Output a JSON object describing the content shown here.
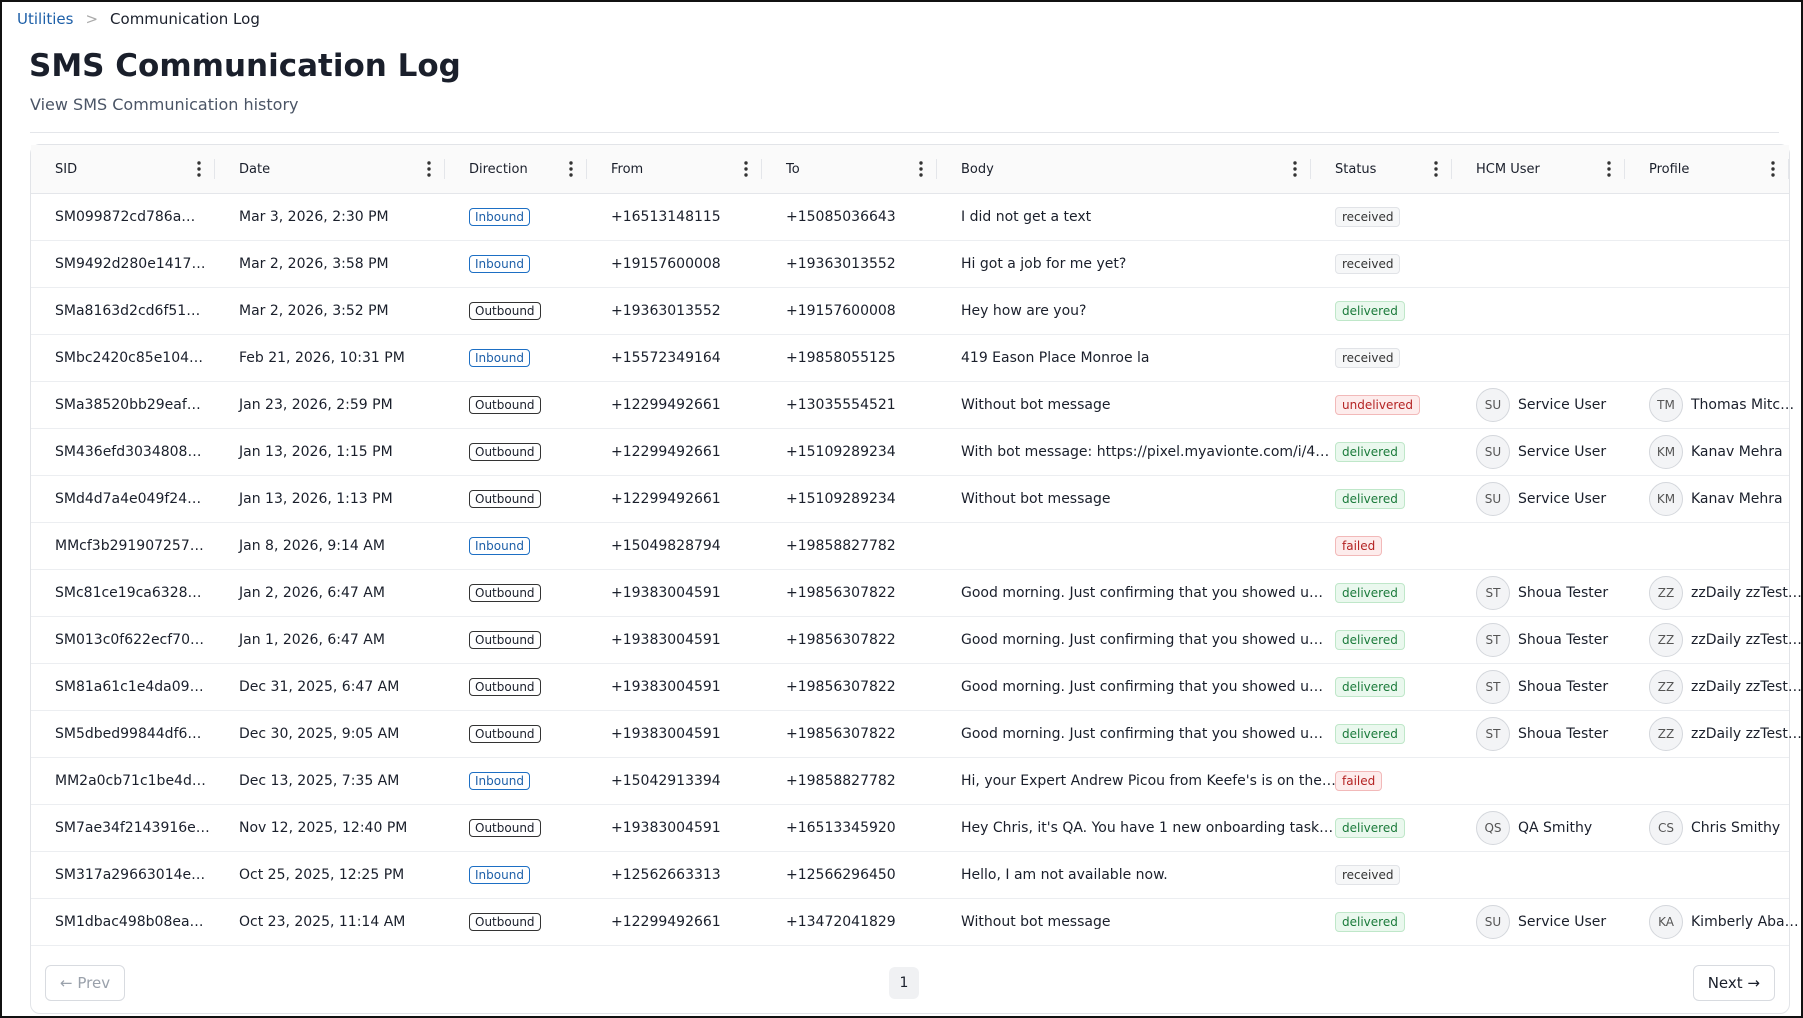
{
  "breadcrumb": {
    "parent": "Utilities",
    "current": "Communication Log"
  },
  "header": {
    "title": "SMS Communication Log",
    "subtitle": "View SMS Communication history"
  },
  "table": {
    "columns": [
      "SID",
      "Date",
      "Direction",
      "From",
      "To",
      "Body",
      "Status",
      "HCM User",
      "Profile"
    ],
    "rows": [
      {
        "sid": "SM099872cd786a…",
        "date": "Mar 3, 2026, 2:30 PM",
        "direction": "Inbound",
        "from": "+16513148115",
        "to": "+15085036643",
        "body": "I did not get a text",
        "status": "received"
      },
      {
        "sid": "SM9492d280e1417…",
        "date": "Mar 2, 2026, 3:58 PM",
        "direction": "Inbound",
        "from": "+19157600008",
        "to": "+19363013552",
        "body": "Hi got a job for me yet?",
        "status": "received"
      },
      {
        "sid": "SMa8163d2cd6f51…",
        "date": "Mar 2, 2026, 3:52 PM",
        "direction": "Outbound",
        "from": "+19363013552",
        "to": "+19157600008",
        "body": "Hey how are you?",
        "status": "delivered"
      },
      {
        "sid": "SMbc2420c85e104…",
        "date": "Feb 21, 2026, 10:31 PM",
        "direction": "Inbound",
        "from": "+15572349164",
        "to": "+19858055125",
        "body": "419 Eason Place Monroe la",
        "status": "received"
      },
      {
        "sid": "SMa38520bb29eaf…",
        "date": "Jan 23, 2026, 2:59 PM",
        "direction": "Outbound",
        "from": "+12299492661",
        "to": "+13035554521",
        "body": "Without bot message",
        "status": "undelivered",
        "user": {
          "initials": "SU",
          "name": "Service User"
        },
        "profile": {
          "initials": "TM",
          "name": "Thomas Mitc…"
        }
      },
      {
        "sid": "SM436efd3034808…",
        "date": "Jan 13, 2026, 1:15 PM",
        "direction": "Outbound",
        "from": "+12299492661",
        "to": "+15109289234",
        "body": "With bot message: https://pixel.myavionte.com/i/4…",
        "status": "delivered",
        "user": {
          "initials": "SU",
          "name": "Service User"
        },
        "profile": {
          "initials": "KM",
          "name": "Kanav Mehra"
        }
      },
      {
        "sid": "SMd4d7a4e049f24…",
        "date": "Jan 13, 2026, 1:13 PM",
        "direction": "Outbound",
        "from": "+12299492661",
        "to": "+15109289234",
        "body": "Without bot message",
        "status": "delivered",
        "user": {
          "initials": "SU",
          "name": "Service User"
        },
        "profile": {
          "initials": "KM",
          "name": "Kanav Mehra"
        }
      },
      {
        "sid": "MMcf3b291907257…",
        "date": "Jan 8, 2026, 9:14 AM",
        "direction": "Inbound",
        "from": "+15049828794",
        "to": "+19858827782",
        "status": "failed"
      },
      {
        "sid": "SMc81ce19ca6328…",
        "date": "Jan 2, 2026, 6:47 AM",
        "direction": "Outbound",
        "from": "+19383004591",
        "to": "+19856307822",
        "body": "Good morning. Just confirming that you showed u…",
        "status": "delivered",
        "user": {
          "initials": "ST",
          "name": "Shoua Tester"
        },
        "profile": {
          "initials": "ZZ",
          "name": "zzDaily zzTest…"
        }
      },
      {
        "sid": "SM013c0f622ecf70…",
        "date": "Jan 1, 2026, 6:47 AM",
        "direction": "Outbound",
        "from": "+19383004591",
        "to": "+19856307822",
        "body": "Good morning. Just confirming that you showed u…",
        "status": "delivered",
        "user": {
          "initials": "ST",
          "name": "Shoua Tester"
        },
        "profile": {
          "initials": "ZZ",
          "name": "zzDaily zzTest…"
        }
      },
      {
        "sid": "SM81a61c1e4da09…",
        "date": "Dec 31, 2025, 6:47 AM",
        "direction": "Outbound",
        "from": "+19383004591",
        "to": "+19856307822",
        "body": "Good morning. Just confirming that you showed u…",
        "status": "delivered",
        "user": {
          "initials": "ST",
          "name": "Shoua Tester"
        },
        "profile": {
          "initials": "ZZ",
          "name": "zzDaily zzTest…"
        }
      },
      {
        "sid": "SM5dbed99844df6…",
        "date": "Dec 30, 2025, 9:05 AM",
        "direction": "Outbound",
        "from": "+19383004591",
        "to": "+19856307822",
        "body": "Good morning. Just confirming that you showed u…",
        "status": "delivered",
        "user": {
          "initials": "ST",
          "name": "Shoua Tester"
        },
        "profile": {
          "initials": "ZZ",
          "name": "zzDaily zzTest…"
        }
      },
      {
        "sid": "MM2a0cb71c1be4d…",
        "date": "Dec 13, 2025, 7:35 AM",
        "direction": "Inbound",
        "from": "+15042913394",
        "to": "+19858827782",
        "body": "Hi, your Expert Andrew Picou from Keefe's is on the…",
        "status": "failed"
      },
      {
        "sid": "SM7ae34f2143916e…",
        "date": "Nov 12, 2025, 12:40 PM",
        "direction": "Outbound",
        "from": "+19383004591",
        "to": "+16513345920",
        "body": "Hey Chris, it's QA. You have 1 new onboarding task…",
        "status": "delivered",
        "user": {
          "initials": "QS",
          "name": "QA Smithy"
        },
        "profile": {
          "initials": "CS",
          "name": "Chris Smithy"
        }
      },
      {
        "sid": "SM317a29663014e…",
        "date": "Oct 25, 2025, 12:25 PM",
        "direction": "Inbound",
        "from": "+12562663313",
        "to": "+12566296450",
        "body": "Hello, I am not available now.",
        "status": "received"
      },
      {
        "sid": "SM1dbac498b08ea…",
        "date": "Oct 23, 2025, 11:14 AM",
        "direction": "Outbound",
        "from": "+12299492661",
        "to": "+13472041829",
        "body": "Without bot message",
        "status": "delivered",
        "user": {
          "initials": "SU",
          "name": "Service User"
        },
        "profile": {
          "initials": "KA",
          "name": "Kimberly Aba…"
        }
      }
    ]
  },
  "pagination": {
    "prev": "Prev",
    "page": "1",
    "next": "Next"
  }
}
